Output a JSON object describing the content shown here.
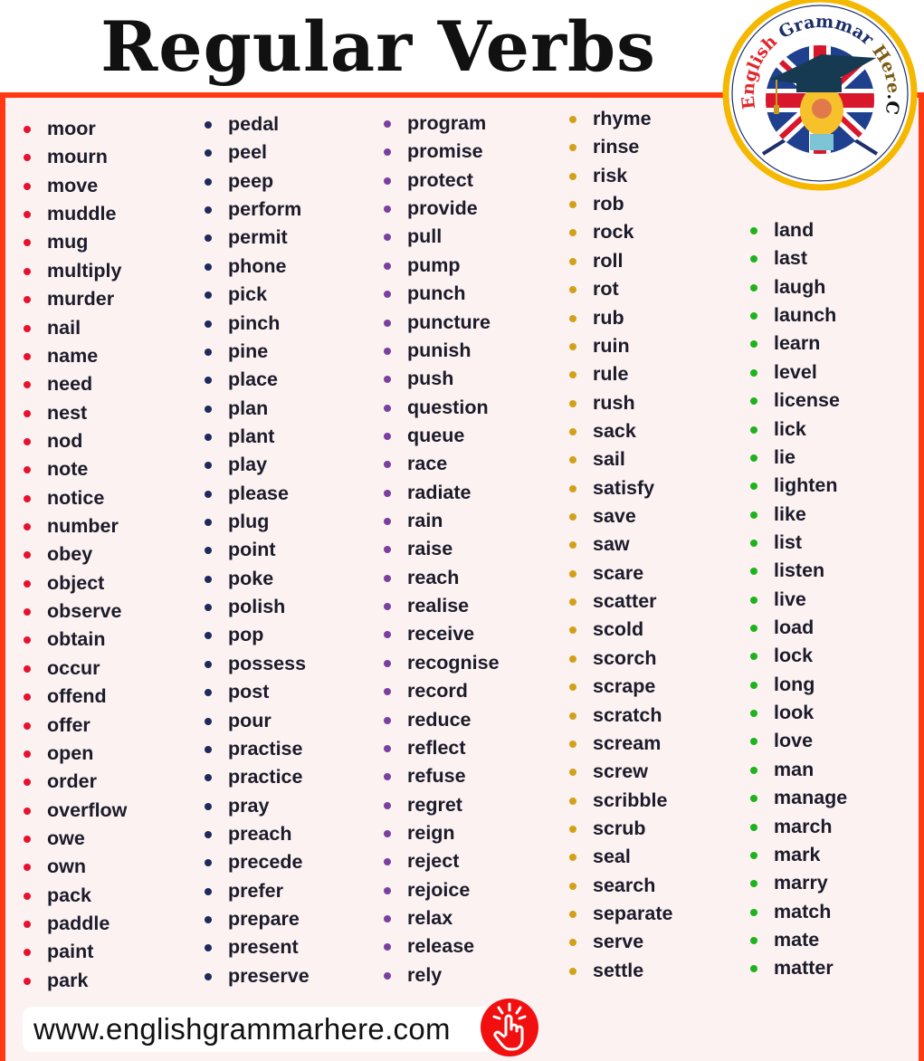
{
  "title": "Regular Verbs",
  "logo": {
    "text_parts": [
      "English",
      "Grammar",
      "Here",
      ".Com"
    ],
    "colors": [
      "#e0282e",
      "#1c2f6b",
      "#7a5a14",
      "#111111"
    ]
  },
  "columns": [
    {
      "bullet_color": "#e8112d",
      "items": [
        "moor",
        "mourn",
        "move",
        "muddle",
        "mug",
        "multiply",
        "murder",
        "nail",
        "name",
        "need",
        "nest",
        "nod",
        "note",
        "notice",
        "number",
        "obey",
        "object",
        "observe",
        "obtain",
        "occur",
        "offend",
        "offer",
        "open",
        "order",
        "overflow",
        "owe",
        "own",
        "pack",
        "paddle",
        "paint",
        "park"
      ]
    },
    {
      "bullet_color": "#1c2a5c",
      "items": [
        "pedal",
        "peel",
        "peep",
        "perform",
        "permit",
        "phone",
        "pick",
        "pinch",
        "pine",
        "place",
        "plan",
        "plant",
        "play",
        "please",
        "plug",
        "point",
        "poke",
        "polish",
        "pop",
        "possess",
        "post",
        "pour",
        "practise",
        "practice",
        "pray",
        "preach",
        "precede",
        "prefer",
        "prepare",
        "present",
        "preserve"
      ]
    },
    {
      "bullet_color": "#7b3fa0",
      "items": [
        "program",
        "promise",
        "protect",
        "provide",
        "pull",
        "pump",
        "punch",
        "puncture",
        "punish",
        "push",
        "question",
        "queue",
        "race",
        "radiate",
        "rain",
        "raise",
        "reach",
        "realise",
        "receive",
        "recognise",
        "record",
        "reduce",
        "reflect",
        "refuse",
        "regret",
        "reign",
        "reject",
        "rejoice",
        "relax",
        "release",
        "rely"
      ]
    },
    {
      "bullet_color": "#d4a018",
      "items": [
        "rhyme",
        "rinse",
        "risk",
        "rob",
        "rock",
        "roll",
        "rot",
        "rub",
        "ruin",
        "rule",
        "rush",
        "sack",
        "sail",
        "satisfy",
        "save",
        "saw",
        "scare",
        "scatter",
        "scold",
        "scorch",
        "scrape",
        "scratch",
        "scream",
        "screw",
        "scribble",
        "scrub",
        "seal",
        "search",
        "separate",
        "serve",
        "settle"
      ]
    },
    {
      "bullet_color": "#1db31d",
      "items": [
        "land",
        "last",
        "laugh",
        "launch",
        "learn",
        "level",
        "license",
        "lick",
        "lie",
        "lighten",
        "like",
        "list",
        "listen",
        "live",
        "load",
        "lock",
        "long",
        "look",
        "love",
        "man",
        "manage",
        "march",
        "mark",
        "marry",
        "match",
        "mate",
        "matter"
      ]
    }
  ],
  "footer": {
    "url": "www.englishgrammarhere.com",
    "icon": "pointing-hand-icon"
  },
  "colors": {
    "frame": "#ff3a12",
    "background": "#fdf2f2"
  }
}
